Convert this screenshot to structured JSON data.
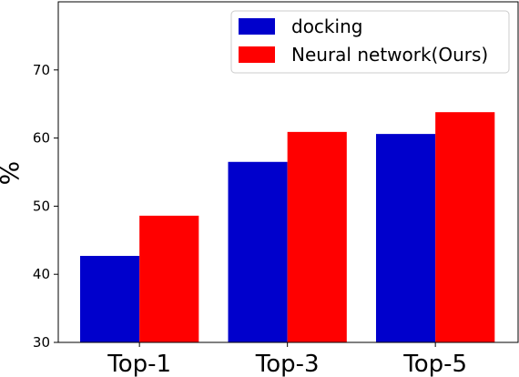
{
  "chart_data": {
    "type": "bar",
    "title": "",
    "xlabel": "",
    "ylabel": "%",
    "ylim": [
      30,
      80
    ],
    "yticks": [
      30,
      40,
      50,
      60,
      70
    ],
    "categories": [
      "Top-1",
      "Top-3",
      "Top-5"
    ],
    "series": [
      {
        "name": "docking",
        "color": "#0000cc",
        "values": [
          42.7,
          56.5,
          60.6
        ]
      },
      {
        "name": "Neural network(Ours)",
        "color": "#ff0000",
        "values": [
          48.6,
          60.9,
          63.8
        ]
      }
    ],
    "legend_position": "top-right",
    "grid": false
  }
}
